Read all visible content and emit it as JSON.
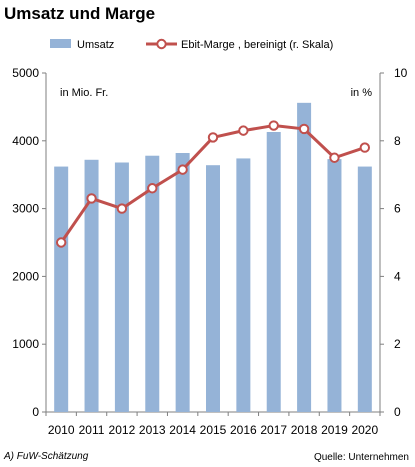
{
  "title": "Umsatz und Marge",
  "chart_data": {
    "type": "bar+line",
    "title": "Umsatz und Marge",
    "categories": [
      "2010",
      "2011",
      "2012",
      "2013",
      "2014",
      "2015",
      "2016",
      "2017",
      "2018",
      "2019",
      "2020"
    ],
    "series": [
      {
        "name": "Umsatz",
        "type": "bar",
        "axis": "left",
        "color": "#95b3d7",
        "values": [
          3620,
          3720,
          3680,
          3780,
          3820,
          3640,
          3740,
          4130,
          4560,
          3730,
          3620
        ]
      },
      {
        "name": "Ebit-Marge , bereinigt (r. Skala)",
        "type": "line",
        "axis": "right",
        "color": "#c0504d",
        "values": [
          5.0,
          6.3,
          6.0,
          6.6,
          7.15,
          8.1,
          8.3,
          8.45,
          8.35,
          7.5,
          7.8
        ]
      }
    ],
    "yleft": {
      "lim": [
        0,
        5000
      ],
      "ticks": [
        "0",
        "1000",
        "2000",
        "3000",
        "4000",
        "5000"
      ],
      "unit": "in Mio. Fr."
    },
    "yright": {
      "lim": [
        0,
        10
      ],
      "ticks": [
        "0",
        "2",
        "4",
        "6",
        "8",
        "10"
      ],
      "unit": "in %"
    },
    "grid": false,
    "legend": "top",
    "footnote_left": "A) FuW-Schätzung",
    "source": "Quelle: Unternehmen"
  }
}
